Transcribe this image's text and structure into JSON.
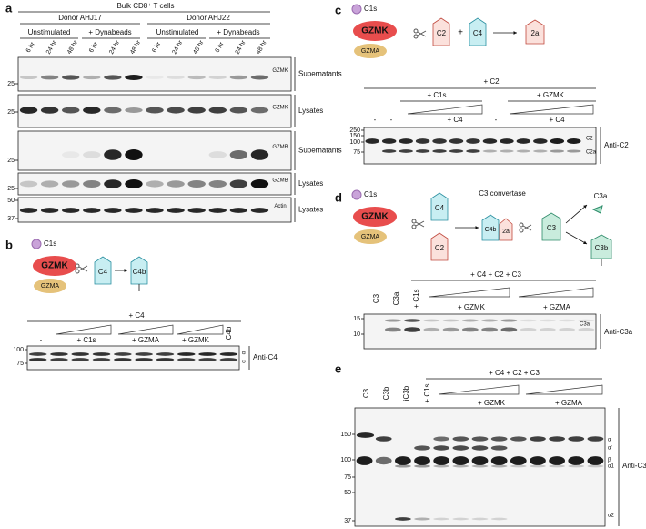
{
  "panels": {
    "a": {
      "label": "a",
      "header": "Bulk CD8⁺ T cells",
      "donors": [
        "Donor AHJ17",
        "Donor AHJ22"
      ],
      "conditions": [
        "Unstimulated",
        "+ Dynabeads",
        "Unstimulated",
        "+ Dynabeads"
      ],
      "lanes": [
        "6 hr",
        "24 hr",
        "48 hr",
        "6 hr",
        "24 hr",
        "48 hr",
        "6 hr",
        "24 hr",
        "48 hr",
        "6 hr",
        "24 hr",
        "48 hr"
      ],
      "blots": [
        {
          "markers": [
            "25"
          ],
          "protein": "GZMK",
          "sample": "Supernatants"
        },
        {
          "markers": [
            "25"
          ],
          "protein": "GZMK",
          "sample": "Lysates"
        },
        {
          "markers": [
            "25"
          ],
          "protein": "GZMB",
          "sample": "Supernatants"
        },
        {
          "markers": [
            "25"
          ],
          "protein": "GZMB",
          "sample": "Lysates"
        },
        {
          "markers": [
            "50",
            "37"
          ],
          "protein": "Actin",
          "sample": "Lysates"
        }
      ]
    },
    "b": {
      "label": "b",
      "schematic": {
        "enzyme": "C1s",
        "proteases": [
          "GZMK",
          "GZMA"
        ],
        "substrate": "C4",
        "product": "C4b"
      },
      "treatment": "+ C4",
      "lanes": [
        "-",
        "+ C1s",
        "+ GZMA",
        "+ GZMK",
        "C4b"
      ],
      "markers": [
        "100",
        "75"
      ],
      "bands": [
        "α'",
        "α"
      ],
      "antibody": "Anti-C4"
    },
    "c": {
      "label": "c",
      "schematic": {
        "enzyme": "C1s",
        "proteases": [
          "GZMK",
          "GZMA"
        ],
        "substrates": [
          "C2",
          "+",
          "C4"
        ],
        "product": "2a"
      },
      "treatment": "+ C2",
      "groups": [
        "+ C1s",
        "+ GZMK"
      ],
      "cofactors": [
        "+ C4",
        "+ C4"
      ],
      "lanes": [
        "-",
        "-",
        "-"
      ],
      "markers": [
        "250",
        "150",
        "100",
        "75"
      ],
      "bands": [
        "C2",
        "C2a"
      ],
      "antibody": "Anti-C2"
    },
    "d": {
      "label": "d",
      "schematic": {
        "enzyme": "C1s",
        "proteases": [
          "GZMK",
          "GZMA"
        ],
        "inputs": [
          "C4",
          "C2"
        ],
        "convertase_title": "C3 convertase",
        "convertase": [
          "C4b",
          "2a"
        ],
        "substrate": "C3",
        "products": [
          "C3a",
          "C3b"
        ]
      },
      "treatment": "+ C4 + C2 + C3",
      "lanes": [
        "C3",
        "C3a",
        "+ C1s"
      ],
      "groups": [
        "+ GZMK",
        "+ GZMA"
      ],
      "markers": [
        "15",
        "10"
      ],
      "bands": [
        "C3a"
      ],
      "antibody": "Anti-C3a"
    },
    "e": {
      "label": "e",
      "treatment": "+ C4 + C2 + C3",
      "lanes": [
        "C3",
        "C3b",
        "iC3b",
        "+ C1s"
      ],
      "groups": [
        "+ GZMK",
        "+ GZMA"
      ],
      "markers": [
        "150",
        "100",
        "75",
        "50",
        "37"
      ],
      "bands": [
        "α",
        "α'",
        "β",
        "α1",
        "α2"
      ],
      "antibody": "Anti-C3"
    }
  }
}
